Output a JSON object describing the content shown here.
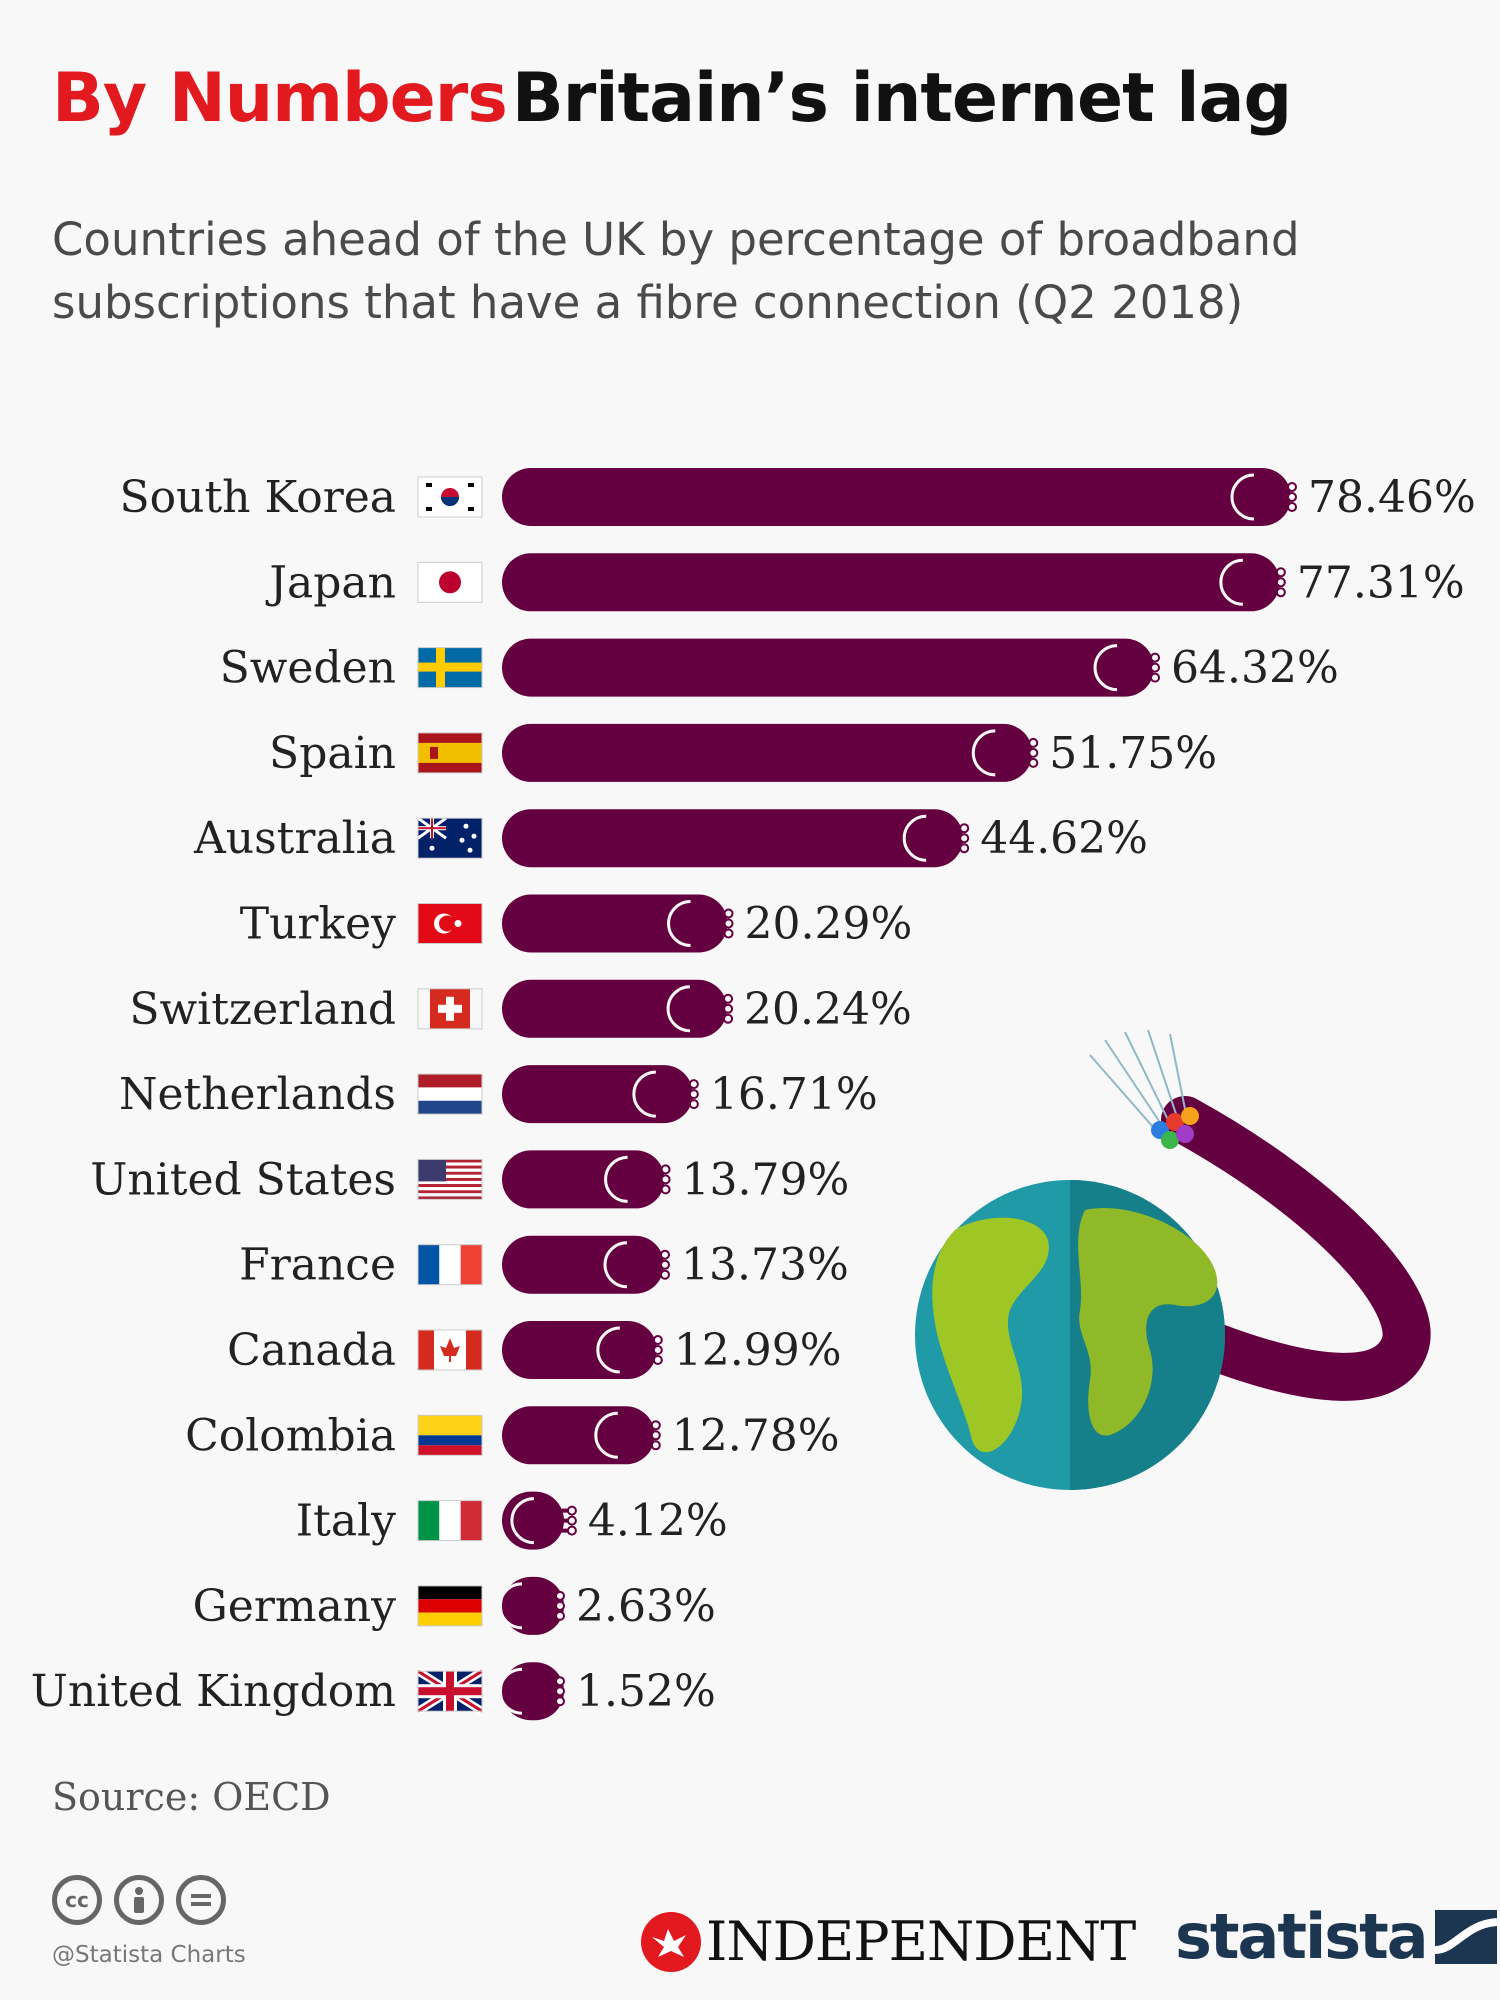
{
  "header": {
    "title_red": "By Numbers",
    "title_black": "Britain’s internet lag",
    "subtitle": "Countries ahead of the UK by percentage of broadband subscriptions that have a fibre connection (Q2 2018)"
  },
  "colors": {
    "accent_red": "#e2191f",
    "cable": "#650040",
    "text": "#222222",
    "statista_navy": "#1c3550"
  },
  "chart_data": {
    "type": "bar",
    "orientation": "horizontal",
    "categories": [
      "South Korea",
      "Japan",
      "Sweden",
      "Spain",
      "Australia",
      "Turkey",
      "Switzerland",
      "Netherlands",
      "United States",
      "France",
      "Canada",
      "Colombia",
      "Italy",
      "Germany",
      "United Kingdom"
    ],
    "values": [
      78.46,
      77.31,
      64.32,
      51.75,
      44.62,
      20.29,
      20.24,
      16.71,
      13.79,
      13.73,
      12.99,
      12.78,
      4.12,
      2.63,
      1.52
    ],
    "value_labels": [
      "78.46%",
      "77.31%",
      "64.32%",
      "51.75%",
      "44.62%",
      "20.29%",
      "20.24%",
      "16.71%",
      "13.79%",
      "13.73%",
      "12.99%",
      "12.78%",
      "4.12%",
      "2.63%",
      "1.52%"
    ],
    "flags": [
      "south-korea-flag",
      "japan-flag",
      "sweden-flag",
      "spain-flag",
      "australia-flag",
      "turkey-flag",
      "switzerland-flag",
      "netherlands-flag",
      "united-states-flag",
      "france-flag",
      "canada-flag",
      "colombia-flag",
      "italy-flag",
      "germany-flag",
      "united-kingdom-flag"
    ],
    "unit": "%",
    "grid": false,
    "legend": "none"
  },
  "footer": {
    "source": "Source: OECD",
    "credit": "@Statista Charts",
    "cc_icons": [
      "cc",
      "by",
      "nd"
    ],
    "independent": "INDEPENDENT",
    "statista": "statista"
  }
}
